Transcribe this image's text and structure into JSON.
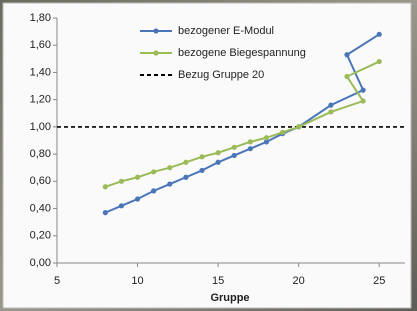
{
  "chart_data": {
    "type": "line",
    "x_label": "Gruppe",
    "x": [
      8,
      9,
      10,
      11,
      12,
      13,
      14,
      15,
      16,
      17,
      18,
      19,
      20,
      22,
      24,
      23,
      25
    ],
    "series": [
      {
        "name": "bezogener E-Modul",
        "color": "#4a76b8",
        "values": [
          0.37,
          0.42,
          0.47,
          0.53,
          0.58,
          0.63,
          0.68,
          0.74,
          0.79,
          0.84,
          0.89,
          0.95,
          1.0,
          1.16,
          1.27,
          1.53,
          1.68
        ]
      },
      {
        "name": "bezogene Biegespannung",
        "color": "#9bbb59",
        "values": [
          0.56,
          0.6,
          0.63,
          0.67,
          0.7,
          0.74,
          0.78,
          0.81,
          0.85,
          0.89,
          0.92,
          0.96,
          1.0,
          1.11,
          1.19,
          1.37,
          1.48
        ]
      }
    ],
    "reference_line": {
      "name": "Bezug Gruppe 20",
      "value": 1.0,
      "color": "#000000"
    },
    "xlim": [
      5,
      26.6
    ],
    "xticks": [
      5,
      10,
      15,
      20,
      25
    ],
    "ylim": [
      0,
      1.8
    ],
    "yticks": [
      {
        "value": 0,
        "label": "0,00"
      },
      {
        "value": 0.2,
        "label": "0,20"
      },
      {
        "value": 0.4,
        "label": "0,40"
      },
      {
        "value": 0.6,
        "label": "0,60"
      },
      {
        "value": 0.8,
        "label": "0,80"
      },
      {
        "value": 1.0,
        "label": "1,00"
      },
      {
        "value": 1.2,
        "label": "1,20"
      },
      {
        "value": 1.4,
        "label": "1,40"
      },
      {
        "value": 1.6,
        "label": "1,60"
      },
      {
        "value": 1.8,
        "label": "1,80"
      }
    ],
    "grid": false
  }
}
